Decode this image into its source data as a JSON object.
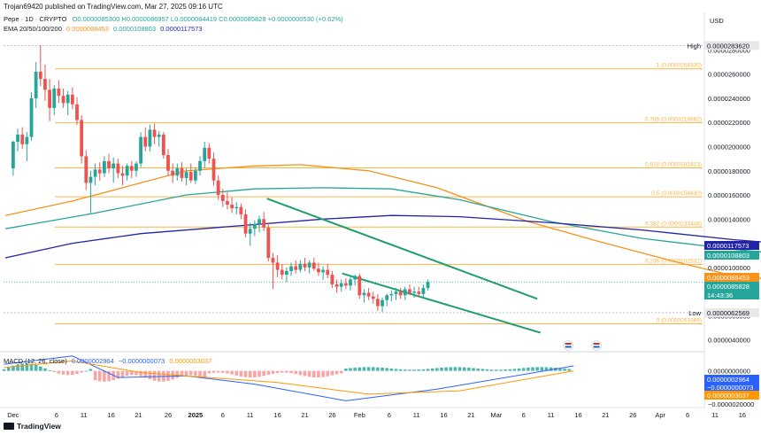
{
  "header": {
    "publisher": "Trojan69420 published on TradingView.com, Mar 27, 2025 09:16 UTC",
    "symbol": "Pepe · 1D · CRYPTO",
    "ohlc_open": "O0.0000085300",
    "ohlc_high": "H0.0000086957",
    "ohlc_low": "L0.0000084419",
    "ohlc_close": "C0.0000085828",
    "ohlc_change": "+0.0000000530 (+0.62%)",
    "ema_label": "EMA 20/50/100/200",
    "ema20": "0.0000088453",
    "ema50": "0.0000108803",
    "ema100": "0.0000117573",
    "currency": "USD"
  },
  "footer": {
    "brand": "TradingView"
  },
  "colors": {
    "up": "#26a69a",
    "down": "#ef5350",
    "ema20": "#f7931a",
    "ema50": "#26a69a",
    "ema100": "#2323a7",
    "fib": "#f7b545",
    "channel": "#1f9e6b",
    "macd": "#2962ff",
    "signal": "#ff9800"
  },
  "chart_data": [
    {
      "type": "candlestick",
      "title": "Pepe · 1D · CRYPTO",
      "ylim": [
        3.1e-06,
        2.92e-05
      ],
      "y_ticks": [
        "0.0000040000",
        "0.0000060000",
        "0.0000080000",
        "0.0000100000",
        "0.0000120000",
        "0.0000140000",
        "0.0000160000",
        "0.0000180000",
        "0.0000200000",
        "0.0000220000",
        "0.0000240000",
        "0.0000260000",
        "0.0000280000"
      ],
      "x_ticks": [
        "Dec",
        "6",
        "11",
        "16",
        "21",
        "26",
        "2025",
        "6",
        "11",
        "16",
        "21",
        "26",
        "Feb",
        "6",
        "11",
        "16",
        "21",
        "Mar",
        "6",
        "11",
        "16",
        "21",
        "26",
        "Apr",
        "6",
        "11",
        "16",
        "21"
      ],
      "high_label": "High",
      "high_value": "0.0000283620",
      "low_label": "Low",
      "low_value": "0.0000062569",
      "price_tags": [
        {
          "value": "0.0000117573",
          "color": "#2323a7"
        },
        {
          "value": "0.0000108803",
          "color": "#26a69a"
        },
        {
          "value": "0.0000088453",
          "color": "#f7931a"
        },
        {
          "value": "0.0000085828",
          "color": "#26a69a"
        }
      ],
      "countdown": "14:43:36",
      "fib_levels": [
        {
          "label": "1 (0.0000264330)",
          "value": 2.6433e-05
        },
        {
          "label": "0.786 (0.0000219882)",
          "value": 2.19882e-05
        },
        {
          "label": "0.618 (0.0000182413)",
          "value": 1.82413e-05
        },
        {
          "label": "0.5 (0.0000158430)",
          "value": 1.5843e-05
        },
        {
          "label": "0.382 (0.0000133448)",
          "value": 1.33448e-05
        },
        {
          "label": "0.236 (0.0000102531)",
          "value": 1.02531e-05
        },
        {
          "label": "0 (0.0000053369)",
          "value": 5.3369e-06
        }
      ],
      "series": [
        {
          "name": "EMA 20",
          "values": [
            [
              0.3,
              1.43e-05
            ],
            [
              15,
              1.55e-05
            ],
            [
              30,
              1.7e-05
            ],
            [
              40,
              1.8e-05
            ],
            [
              55,
              1.84e-05
            ],
            [
              65,
              1.85e-05
            ],
            [
              80,
              1.8e-05
            ],
            [
              95,
              1.66e-05
            ],
            [
              115,
              1.38e-05
            ],
            [
              130,
              1.22e-05
            ],
            [
              140,
              1.12e-05
            ],
            [
              148,
              1.04e-05
            ],
            [
              158,
              9.5e-06
            ],
            [
              168,
              9e-06
            ],
            [
              178,
              8.85e-06
            ]
          ]
        },
        {
          "name": "EMA 50",
          "values": [
            [
              0.3,
              1.32e-05
            ],
            [
              20,
              1.45e-05
            ],
            [
              40,
              1.6e-05
            ],
            [
              55,
              1.65e-05
            ],
            [
              70,
              1.66e-05
            ],
            [
              85,
              1.65e-05
            ],
            [
              100,
              1.56e-05
            ],
            [
              120,
              1.38e-05
            ],
            [
              140,
              1.24e-05
            ],
            [
              160,
              1.15e-05
            ],
            [
              178,
              1.088e-05
            ]
          ]
        },
        {
          "name": "EMA 100",
          "values": [
            [
              0.3,
              1.08e-05
            ],
            [
              15,
              1.2e-05
            ],
            [
              30,
              1.28e-05
            ],
            [
              50,
              1.34e-05
            ],
            [
              70,
              1.4e-05
            ],
            [
              85,
              1.43e-05
            ],
            [
              100,
              1.42e-05
            ],
            [
              120,
              1.37e-05
            ],
            [
              140,
              1.31e-05
            ],
            [
              160,
              1.23e-05
            ],
            [
              178,
              1.176e-05
            ]
          ]
        }
      ],
      "candles": [
        [
          2,
          1.82e-05,
          2.05e-05,
          1.76e-05,
          2.04e-05
        ],
        [
          3,
          2.04e-05,
          2.15e-05,
          1.96e-05,
          2.1e-05
        ],
        [
          4,
          2.1e-05,
          2.16e-05,
          1.98e-05,
          2.02e-05
        ],
        [
          5,
          2.02e-05,
          2.12e-05,
          1.88e-05,
          2.08e-05
        ],
        [
          6,
          2.08e-05,
          2.45e-05,
          2.05e-05,
          2.4e-05
        ],
        [
          7,
          2.4e-05,
          2.7e-05,
          2.32e-05,
          2.62e-05
        ],
        [
          8,
          2.62e-05,
          2.84e-05,
          2.5e-05,
          2.56e-05
        ],
        [
          9,
          2.56e-05,
          2.68e-05,
          2.38e-05,
          2.47e-05
        ],
        [
          10,
          2.47e-05,
          2.56e-05,
          2.21e-05,
          2.32e-05
        ],
        [
          11,
          2.32e-05,
          2.51e-05,
          2.26e-05,
          2.48e-05
        ],
        [
          12,
          2.48e-05,
          2.55e-05,
          2.36e-05,
          2.42e-05
        ],
        [
          13,
          2.42e-05,
          2.48e-05,
          2.32e-05,
          2.36e-05
        ],
        [
          14,
          2.36e-05,
          2.46e-05,
          2.26e-05,
          2.43e-05
        ],
        [
          15,
          2.43e-05,
          2.49e-05,
          2.31e-05,
          2.35e-05
        ],
        [
          16,
          2.35e-05,
          2.41e-05,
          2.18e-05,
          2.22e-05
        ],
        [
          17,
          2.22e-05,
          2.26e-05,
          1.86e-05,
          1.92e-05
        ],
        [
          18,
          1.92e-05,
          1.97e-05,
          1.64e-05,
          1.7e-05
        ],
        [
          19,
          1.7e-05,
          1.8e-05,
          1.45e-05,
          1.75e-05
        ],
        [
          20,
          1.75e-05,
          1.86e-05,
          1.68e-05,
          1.81e-05
        ],
        [
          21,
          1.81e-05,
          1.87e-05,
          1.72e-05,
          1.78e-05
        ],
        [
          22,
          1.78e-05,
          1.92e-05,
          1.75e-05,
          1.88e-05
        ],
        [
          23,
          1.88e-05,
          1.94e-05,
          1.78e-05,
          1.82e-05
        ],
        [
          24,
          1.82e-05,
          1.91e-05,
          1.7e-05,
          1.86e-05
        ],
        [
          25,
          1.86e-05,
          1.9e-05,
          1.74e-05,
          1.78e-05
        ],
        [
          26,
          1.78e-05,
          1.84e-05,
          1.68e-05,
          1.76e-05
        ],
        [
          27,
          1.76e-05,
          1.86e-05,
          1.72e-05,
          1.84e-05
        ],
        [
          28,
          1.84e-05,
          1.88e-05,
          1.74e-05,
          1.8e-05
        ],
        [
          29,
          1.8e-05,
          1.88e-05,
          1.75e-05,
          1.86e-05
        ],
        [
          30,
          1.86e-05,
          2.12e-05,
          1.83e-05,
          2.08e-05
        ],
        [
          31,
          2.08e-05,
          2.16e-05,
          1.96e-05,
          2e-05
        ],
        [
          32,
          2e-05,
          2.18e-05,
          1.96e-05,
          2.14e-05
        ],
        [
          33,
          2.14e-05,
          2.19e-05,
          2.02e-05,
          2.08e-05
        ],
        [
          34,
          2.08e-05,
          2.13e-05,
          2e-05,
          2.1e-05
        ],
        [
          35,
          2.1e-05,
          2.12e-05,
          1.9e-05,
          1.93e-05
        ],
        [
          36,
          1.93e-05,
          1.98e-05,
          1.76e-05,
          1.8e-05
        ],
        [
          37,
          1.8e-05,
          1.86e-05,
          1.7e-05,
          1.76e-05
        ],
        [
          38,
          1.76e-05,
          1.86e-05,
          1.72e-05,
          1.82e-05
        ],
        [
          39,
          1.82e-05,
          1.87e-05,
          1.71e-05,
          1.74e-05
        ],
        [
          40,
          1.74e-05,
          1.82e-05,
          1.68e-05,
          1.79e-05
        ],
        [
          41,
          1.79e-05,
          1.86e-05,
          1.7e-05,
          1.72e-05
        ],
        [
          42,
          1.72e-05,
          1.83e-05,
          1.69e-05,
          1.8e-05
        ],
        [
          43,
          1.8e-05,
          1.92e-05,
          1.76e-05,
          1.88e-05
        ],
        [
          44,
          1.88e-05,
          2.04e-05,
          1.82e-05,
          1.99e-05
        ],
        [
          45,
          1.99e-05,
          2.03e-05,
          1.86e-05,
          1.9e-05
        ],
        [
          46,
          1.9e-05,
          1.95e-05,
          1.68e-05,
          1.72e-05
        ],
        [
          47,
          1.72e-05,
          1.76e-05,
          1.56e-05,
          1.6e-05
        ],
        [
          48,
          1.6e-05,
          1.65e-05,
          1.5e-05,
          1.55e-05
        ],
        [
          49,
          1.55e-05,
          1.62e-05,
          1.48e-05,
          1.52e-05
        ],
        [
          50,
          1.52e-05,
          1.58e-05,
          1.45e-05,
          1.49e-05
        ],
        [
          51,
          1.49e-05,
          1.54e-05,
          1.44e-05,
          1.5e-05
        ],
        [
          52,
          1.5e-05,
          1.53e-05,
          1.4e-05,
          1.44e-05
        ],
        [
          53,
          1.44e-05,
          1.48e-05,
          1.25e-05,
          1.28e-05
        ],
        [
          54,
          1.28e-05,
          1.37e-05,
          1.18e-05,
          1.32e-05
        ],
        [
          55,
          1.32e-05,
          1.39e-05,
          1.26e-05,
          1.36e-05
        ],
        [
          56,
          1.36e-05,
          1.43e-05,
          1.29e-05,
          1.4e-05
        ],
        [
          57,
          1.4e-05,
          1.46e-05,
          1.3e-05,
          1.33e-05
        ],
        [
          58,
          1.33e-05,
          1.37e-05,
          1.05e-05,
          1.08e-05
        ],
        [
          59,
          1.08e-05,
          1.12e-05,
          8.2e-06,
          1.04e-05
        ],
        [
          60,
          1.04e-05,
          1.1e-05,
          9.2e-06,
          9.8e-06
        ],
        [
          61,
          9.8e-06,
          1.03e-05,
          9e-06,
          9.4e-06
        ],
        [
          62,
          9.4e-06,
          1e-05,
          8.8e-06,
          9.7e-06
        ],
        [
          63,
          9.7e-06,
          1.04e-05,
          9.3e-06,
          1.01e-05
        ],
        [
          64,
          1.01e-05,
          1.06e-05,
          9.5e-06,
          9.8e-06
        ],
        [
          65,
          9.8e-06,
          1.06e-05,
          9.6e-06,
          1.03e-05
        ],
        [
          66,
          1.03e-05,
          1.08e-05,
          9.7e-06,
          1e-05
        ],
        [
          67,
          1e-05,
          1.06e-05,
          9.5e-06,
          1.04e-05
        ],
        [
          68,
          1.04e-05,
          1.08e-05,
          9.7e-06,
          9.9e-06
        ],
        [
          69,
          9.9e-06,
          1.04e-05,
          9.3e-06,
          9.6e-06
        ],
        [
          70,
          9.6e-06,
          1.01e-05,
          9e-06,
          9.8e-06
        ],
        [
          71,
          9.8e-06,
          1.03e-05,
          9.1e-06,
          9.4e-06
        ],
        [
          72,
          9.4e-06,
          9.7e-06,
          8.3e-06,
          8.6e-06
        ],
        [
          73,
          8.6e-06,
          9e-06,
          7.9e-06,
          8.4e-06
        ],
        [
          74,
          8.4e-06,
          9e-06,
          8e-06,
          8.7e-06
        ],
        [
          75,
          8.7e-06,
          9.1e-06,
          8.2e-06,
          8.5e-06
        ],
        [
          76,
          8.5e-06,
          9.2e-06,
          8.1e-06,
          9e-06
        ],
        [
          77,
          9e-06,
          9.4e-06,
          8.5e-06,
          9.3e-06
        ],
        [
          78,
          9.3e-06,
          9.5e-06,
          7.4e-06,
          7.7e-06
        ],
        [
          79,
          7.7e-06,
          8.2e-06,
          7.1e-06,
          7.9e-06
        ],
        [
          80,
          7.9e-06,
          8.3e-06,
          7.3e-06,
          7.6e-06
        ],
        [
          81,
          7.6e-06,
          8e-06,
          7e-06,
          7.4e-06
        ],
        [
          82,
          7.4e-06,
          7.8e-06,
          6.4e-06,
          6.8e-06
        ],
        [
          83,
          6.8e-06,
          7.5e-06,
          6.3e-06,
          7.3e-06
        ],
        [
          84,
          7.3e-06,
          7.8e-06,
          6.8e-06,
          7.7e-06
        ],
        [
          85,
          7.7e-06,
          8.1e-06,
          7.2e-06,
          7.8e-06
        ],
        [
          86,
          7.8e-06,
          8.3e-06,
          7.3e-06,
          8e-06
        ],
        [
          87,
          8e-06,
          8.3e-06,
          7.4e-06,
          7.7e-06
        ],
        [
          88,
          7.7e-06,
          8.4e-06,
          7.3e-06,
          8.2e-06
        ],
        [
          89,
          8.2e-06,
          8.6e-06,
          7.7e-06,
          7.9e-06
        ],
        [
          90,
          7.9e-06,
          8.4e-06,
          7.5e-06,
          8e-06
        ],
        [
          91,
          8e-06,
          8.4e-06,
          7.6e-06,
          7.8e-06
        ],
        [
          92,
          7.8e-06,
          8.6e-06,
          7.5e-06,
          8.3e-06
        ],
        [
          93,
          8.3e-06,
          9e-06,
          8.1e-06,
          8.8e-06
        ]
      ]
    },
    {
      "type": "line",
      "title": "MACD (12, 26, close)",
      "macd_value": "0.0000002964",
      "signal_value": "−0.0000000073",
      "hist_value": "0.0000003037",
      "ylim": [
        -2.1e-06,
        1.1e-06
      ],
      "y_ticks": [
        "0.0000000000",
        "−0.0000020000"
      ],
      "tags": [
        {
          "value": "0.0000002964",
          "color": "#2962ff"
        },
        {
          "value": "−0.0000000073",
          "color": "#2962ff"
        },
        {
          "value": "0.0000003037",
          "color": "#ff9800"
        }
      ]
    }
  ]
}
